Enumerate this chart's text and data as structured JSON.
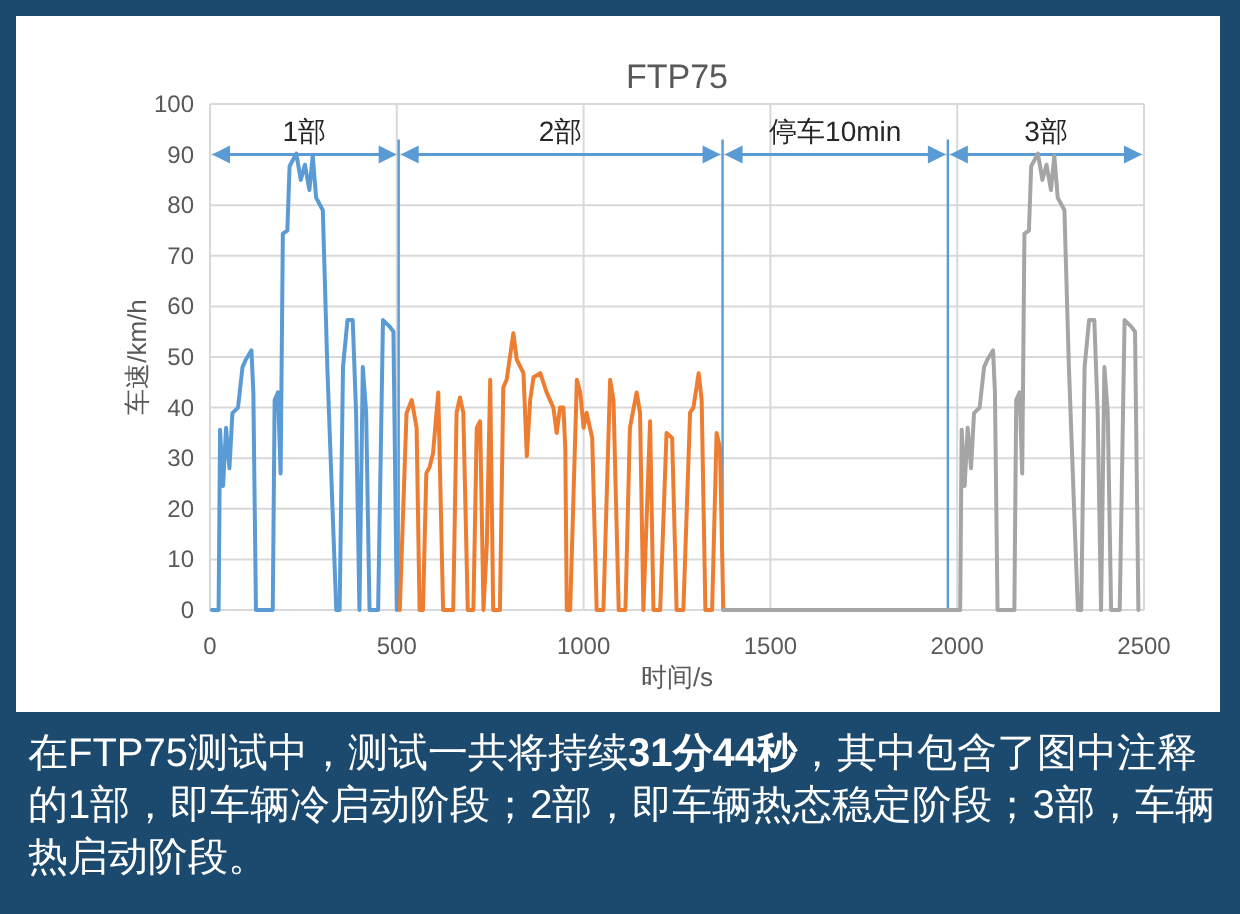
{
  "chart_data": {
    "type": "line",
    "title": "FTP75",
    "xlabel": "时间/s",
    "ylabel": "车速/km/h",
    "xlim": [
      0,
      2500
    ],
    "ylim": [
      0,
      100
    ],
    "xticks": [
      0,
      500,
      1000,
      1500,
      2000,
      2500
    ],
    "yticks": [
      0,
      10,
      20,
      30,
      40,
      50,
      60,
      70,
      80,
      90,
      100
    ],
    "grid": true,
    "series": [
      {
        "color": "#5b9bd5",
        "x": [
          5,
          23,
          27,
          35,
          43,
          52,
          60,
          75,
          87,
          96,
          111,
          116,
          123,
          168,
          173,
          182,
          189,
          195,
          207,
          213,
          231,
          243,
          254,
          266,
          275,
          284,
          302,
          314,
          329,
          338,
          347,
          356,
          368,
          382,
          391,
          400,
          409,
          418,
          427,
          450,
          463,
          481,
          491,
          500
        ],
        "values": [
          0,
          0,
          35.6,
          24.5,
          36,
          28,
          38.9,
          40,
          48,
          49.5,
          51.3,
          43,
          0,
          0,
          41.5,
          43,
          27,
          74.4,
          75,
          87.7,
          90.2,
          85,
          88,
          83,
          89.8,
          81.5,
          79,
          48,
          17.8,
          0,
          0,
          48,
          57.3,
          57.3,
          38.9,
          0,
          48,
          39,
          0,
          0,
          57.3,
          56,
          55,
          0
        ]
      },
      {
        "color": "#ed7d31",
        "x": [
          508,
          526,
          540,
          553,
          561,
          570,
          579,
          588,
          597,
          611,
          624,
          651,
          660,
          669,
          678,
          690,
          705,
          714,
          723,
          732,
          741,
          750,
          758,
          776,
          785,
          794,
          812,
          821,
          839,
          848,
          857,
          866,
          884,
          901,
          919,
          928,
          937,
          946,
          951,
          955,
          964,
          982,
          991,
          1000,
          1008,
          1023,
          1035,
          1053,
          1071,
          1080,
          1094,
          1112,
          1124,
          1142,
          1151,
          1160,
          1178,
          1187,
          1205,
          1222,
          1237,
          1249,
          1267,
          1285,
          1294,
          1308,
          1316,
          1326,
          1344,
          1356,
          1365,
          1374
        ],
        "values": [
          0,
          38.9,
          41.5,
          36,
          0,
          0,
          27,
          28.3,
          31,
          43,
          0,
          0,
          39,
          42,
          39,
          0,
          0,
          36,
          37.3,
          0,
          13,
          45.5,
          0,
          0,
          44,
          45.5,
          54.7,
          49.5,
          46.8,
          30.4,
          41.5,
          46,
          46.8,
          43,
          40,
          35,
          40,
          40,
          32,
          0,
          0,
          45.5,
          43,
          36,
          39,
          34,
          0,
          0,
          45.5,
          41.5,
          0,
          0,
          36,
          43,
          39,
          0,
          37.3,
          0,
          0,
          35,
          34,
          0,
          0,
          39,
          40,
          46.8,
          41.5,
          0,
          0,
          35,
          32,
          0
        ]
      },
      {
        "color": "#a5a5a5",
        "x": [
          1374,
          1990,
          2008,
          2012,
          2020,
          2028,
          2037,
          2045,
          2060,
          2072,
          2081,
          2096,
          2101,
          2108,
          2153,
          2158,
          2167,
          2174,
          2180,
          2192,
          2198,
          2216,
          2228,
          2239,
          2251,
          2260,
          2269,
          2287,
          2299,
          2314,
          2323,
          2332,
          2341,
          2353,
          2367,
          2376,
          2385,
          2394,
          2403,
          2412,
          2435,
          2448,
          2466,
          2476,
          2485
        ],
        "values": [
          0,
          0,
          0,
          35.6,
          24.5,
          36,
          28,
          38.9,
          40,
          48,
          49.5,
          51.3,
          43,
          0,
          0,
          41.5,
          43,
          27,
          74.4,
          75,
          87.7,
          90.2,
          85,
          88,
          83,
          89.8,
          81.5,
          79,
          48,
          17.8,
          0,
          0,
          48,
          57.3,
          57.3,
          38.9,
          0,
          48,
          39,
          0,
          0,
          57.3,
          56,
          55,
          0
        ]
      }
    ],
    "ref_lines": [
      {
        "axis": "x",
        "value": 505,
        "color": "#5b9bd5"
      },
      {
        "axis": "x",
        "value": 1372,
        "color": "#5b9bd5"
      },
      {
        "axis": "x",
        "value": 1975,
        "color": "#5b9bd5"
      }
    ],
    "annotations": [
      "1部",
      "2部",
      "停车10min",
      "3部",
      "在FTP75测试中，测试一共将持续**31分44秒**，其中包含了图中注释的1部，即车辆冷启动阶段；2部，即车辆热态稳定阶段；3部，车辆热启动阶段。"
    ]
  }
}
